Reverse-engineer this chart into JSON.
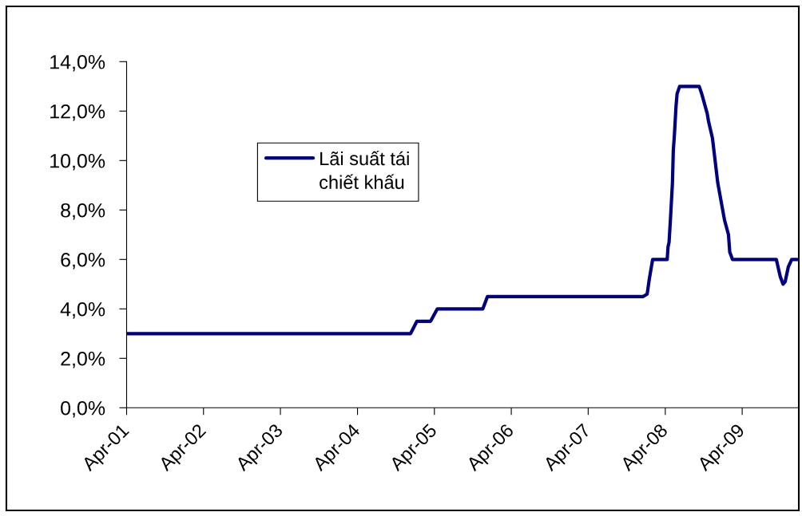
{
  "chart_data": {
    "type": "line",
    "series": [
      {
        "name": "Lãi suất tái chiết khấu",
        "color": "#000080",
        "x": [
          "2001-04-05",
          "2004-12-09",
          "2005-01-08",
          "2005-03-14",
          "2005-04-15",
          "2005-11-17",
          "2005-12-09",
          "2007-12-18",
          "2008-01-06",
          "2008-01-16",
          "2008-02-01",
          "2008-04-10",
          "2008-04-14",
          "2008-04-19",
          "2008-04-26",
          "2008-05-05",
          "2008-05-09",
          "2008-05-14",
          "2008-05-22",
          "2008-05-27",
          "2008-06-08",
          "2008-09-09",
          "2008-09-21",
          "2008-10-17",
          "2008-10-23",
          "2008-11-11",
          "2008-12-06",
          "2009-01-07",
          "2009-01-26",
          "2009-02-01",
          "2009-02-14",
          "2009-08-29",
          "2009-09-10",
          "2009-09-29",
          "2009-10-12",
          "2009-10-22",
          "2009-11-06",
          "2009-11-22",
          "2009-12-18"
        ],
        "values": [
          3.0,
          3.0,
          3.5,
          3.5,
          4.0,
          4.0,
          4.5,
          4.5,
          4.6,
          5.2,
          6.0,
          6.0,
          6.5,
          6.7,
          7.7,
          9.1,
          10.4,
          11.0,
          12.2,
          12.7,
          13.0,
          13.0,
          12.7,
          11.9,
          11.6,
          10.9,
          9.1,
          7.6,
          7.0,
          6.3,
          6.0,
          6.0,
          6.0,
          5.3,
          5.0,
          5.1,
          5.7,
          6.0,
          6.0
        ]
      }
    ],
    "xlim": [
      "2001-04-01",
      "2009-12-22"
    ],
    "xticks": [
      {
        "value": "2001-04-01",
        "label": "Apr-01"
      },
      {
        "value": "2002-04-01",
        "label": "Apr-02"
      },
      {
        "value": "2003-04-01",
        "label": "Apr-03"
      },
      {
        "value": "2004-04-01",
        "label": "Apr-04"
      },
      {
        "value": "2005-04-01",
        "label": "Apr-05"
      },
      {
        "value": "2006-04-01",
        "label": "Apr-06"
      },
      {
        "value": "2007-04-01",
        "label": "Apr-07"
      },
      {
        "value": "2008-04-01",
        "label": "Apr-08"
      },
      {
        "value": "2009-04-01",
        "label": "Apr-09"
      }
    ],
    "ylim": [
      0,
      14
    ],
    "yticks": [
      {
        "value": 0,
        "label": "0,0%"
      },
      {
        "value": 2,
        "label": "2,0%"
      },
      {
        "value": 4,
        "label": "4,0%"
      },
      {
        "value": 6,
        "label": "6,0%"
      },
      {
        "value": 8,
        "label": "8,0%"
      },
      {
        "value": 10,
        "label": "10,0%"
      },
      {
        "value": 12,
        "label": "12,0%"
      },
      {
        "value": 14,
        "label": "14,0%"
      }
    ],
    "grid": false,
    "legend": "top left"
  }
}
